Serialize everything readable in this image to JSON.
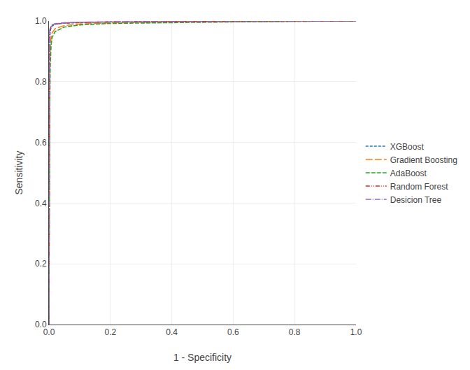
{
  "chart_data": {
    "type": "line",
    "xlabel": "1 - Specificity",
    "ylabel": "Sensitivity",
    "x": [
      0.0,
      0.001,
      0.002,
      0.004,
      0.007,
      0.01,
      0.02,
      0.05,
      0.1,
      0.2,
      0.4,
      0.6,
      0.8,
      1.0
    ],
    "series": [
      {
        "name": "XGBoost",
        "line_style": "shortdash",
        "values": [
          0.0,
          0.8,
          0.93,
          0.965,
          0.978,
          0.983,
          0.989,
          0.993,
          0.995,
          0.997,
          0.998,
          0.999,
          0.999,
          1.0
        ]
      },
      {
        "name": "Gradient Boosting",
        "line_style": "longdash",
        "values": [
          0.0,
          0.55,
          0.78,
          0.91,
          0.945,
          0.96,
          0.975,
          0.985,
          0.99,
          0.994,
          0.997,
          0.998,
          0.999,
          1.0
        ]
      },
      {
        "name": "AdaBoost",
        "line_style": "dash",
        "values": [
          0.0,
          0.4,
          0.65,
          0.85,
          0.92,
          0.945,
          0.965,
          0.98,
          0.987,
          0.992,
          0.995,
          0.997,
          0.999,
          1.0
        ]
      },
      {
        "name": "Random Forest",
        "line_style": "dashdotdot",
        "values": [
          0.0,
          0.88,
          0.96,
          0.975,
          0.982,
          0.986,
          0.99,
          0.993,
          0.995,
          0.997,
          0.998,
          0.999,
          0.999,
          1.0
        ]
      },
      {
        "name": "Desicion Tree",
        "line_style": "dashdot",
        "values": [
          0.0,
          0.92,
          0.965,
          0.977,
          0.983,
          0.987,
          0.991,
          0.994,
          0.996,
          0.997,
          0.998,
          0.999,
          0.999,
          1.0
        ]
      }
    ],
    "xlim": [
      0.0,
      1.0
    ],
    "ylim": [
      0.0,
      1.0
    ],
    "xticks": [
      {
        "value": 0.0,
        "label": "0.0"
      },
      0.2,
      0.4,
      0.6,
      0.8,
      {
        "value": 1.0,
        "label": "1.0"
      }
    ],
    "yticks": [
      {
        "value": 0.0,
        "label": "0.0"
      },
      0.2,
      0.4,
      0.6,
      0.8,
      {
        "value": 1.0,
        "label": "1.0"
      }
    ],
    "grid": true,
    "legend": "right"
  }
}
